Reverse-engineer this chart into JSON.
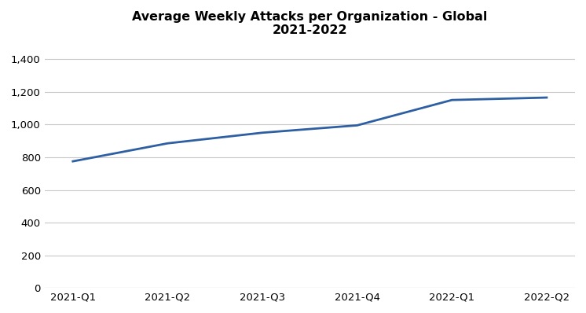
{
  "title_line1": "Average Weekly Attacks per Organization - Global",
  "title_line2": "2021-2022",
  "categories": [
    "2021-Q1",
    "2021-Q2",
    "2021-Q3",
    "2021-Q4",
    "2022-Q1",
    "2022-Q2"
  ],
  "values": [
    775,
    885,
    950,
    995,
    1150,
    1165
  ],
  "line_color": "#2e5fa3",
  "line_width": 2.0,
  "ylim": [
    0,
    1500
  ],
  "yticks": [
    0,
    200,
    400,
    600,
    800,
    1000,
    1200,
    1400
  ],
  "background_color": "#ffffff",
  "grid_color": "#c8c8c8",
  "title_fontsize": 11.5,
  "tick_fontsize": 9.5
}
